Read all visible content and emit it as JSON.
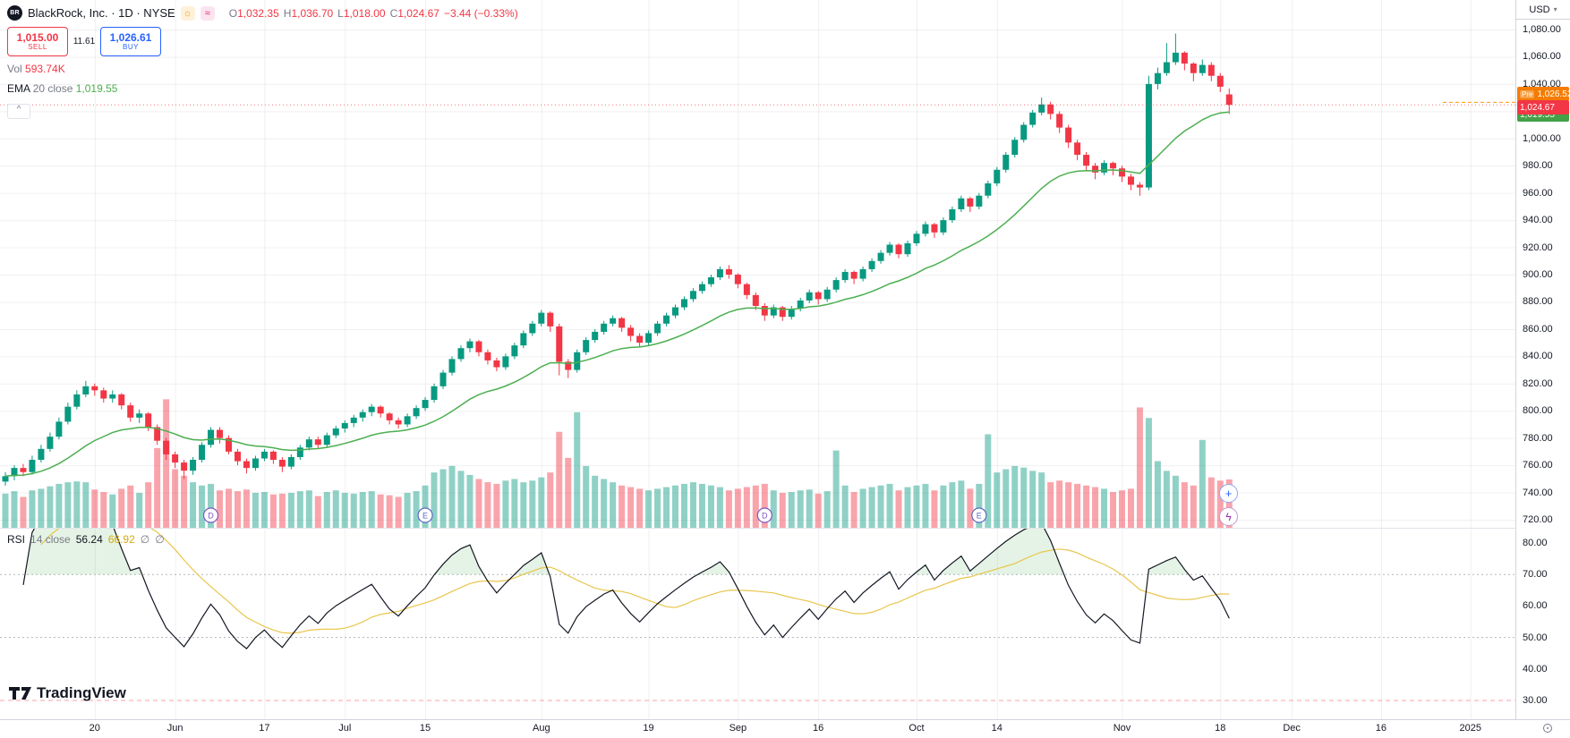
{
  "header": {
    "symbol_logo": "BR",
    "symbol_title": "BlackRock, Inc. · 1D · NYSE",
    "icons": [
      {
        "name": "sun-badge",
        "glyph": "☼"
      },
      {
        "name": "wave-badge",
        "glyph": "≈"
      }
    ],
    "ohlc": {
      "o_label": "O",
      "o": "1,032.35",
      "h_label": "H",
      "h": "1,036.70",
      "l_label": "L",
      "l": "1,018.00",
      "c_label": "C",
      "c": "1,024.67",
      "change": "−3.44 (−0.33%)"
    },
    "sell": {
      "price": "1,015.00",
      "label": "SELL"
    },
    "spread": "11.61",
    "buy": {
      "price": "1,026.61",
      "label": "BUY"
    },
    "vol_label": "Vol",
    "vol_value": "593.74K",
    "ema_label_main": "EMA",
    "ema_label_rest": "20 close",
    "ema_value": "1,019.55"
  },
  "price_scale": {
    "currency": "USD",
    "pre_label": "Pre",
    "pre_value": "1,026.52",
    "last_value": "1,024.67",
    "ema_value": "1,019.55"
  },
  "rsi": {
    "legend_title": "RSI",
    "legend_params": "14 close",
    "value": "56.24",
    "ma_value": "66.92",
    "hidden1": "∅",
    "hidden2": "∅"
  },
  "watermark": {
    "text": "TradingView"
  },
  "markers": [
    {
      "letter": "D",
      "i": 23,
      "color": "#7e57c2"
    },
    {
      "letter": "E",
      "i": 47,
      "color": "#5c6bc0"
    },
    {
      "letter": "D",
      "i": 85,
      "color": "#7e57c2"
    },
    {
      "letter": "E",
      "i": 109,
      "color": "#5c6bc0"
    }
  ],
  "time_axis": {
    "ticks": [
      {
        "l": "20",
        "i": 10
      },
      {
        "l": "Jun",
        "i": 19
      },
      {
        "l": "17",
        "i": 29
      },
      {
        "l": "Jul",
        "i": 38
      },
      {
        "l": "15",
        "i": 47
      },
      {
        "l": "Aug",
        "i": 60
      },
      {
        "l": "19",
        "i": 72
      },
      {
        "l": "Sep",
        "i": 82
      },
      {
        "l": "16",
        "i": 91
      },
      {
        "l": "Oct",
        "i": 102
      },
      {
        "l": "14",
        "i": 111
      },
      {
        "l": "Nov",
        "i": 125
      },
      {
        "l": "18",
        "i": 136
      },
      {
        "l": "Dec",
        "i": 144
      },
      {
        "l": "16",
        "i": 154
      },
      {
        "l": "2025",
        "i": 164
      }
    ]
  },
  "chart_data": {
    "type": "candlestick",
    "title": "BlackRock, Inc.",
    "exchange": "NYSE",
    "interval": "1D",
    "currency": "USD",
    "last_close": 1024.67,
    "premarket_price": 1026.52,
    "price_axis": {
      "ticks": [
        1080,
        1060,
        1040,
        1020,
        1000,
        980,
        960,
        940,
        920,
        900,
        880,
        860,
        840,
        820,
        800,
        780,
        760,
        740,
        720
      ]
    },
    "rsi_axis": {
      "ticks": [
        80,
        70,
        60,
        50,
        40,
        30
      ],
      "bands": [
        70,
        50,
        30
      ]
    },
    "volume_axis_max": 1650,
    "overlays": {
      "ema_period": 20,
      "rsi_period": 14,
      "rsi_ma_period": 14
    },
    "colors": {
      "up": "#089981",
      "down": "#f23645",
      "ema": "#4caf50",
      "rsi": "#131722",
      "rsi_ma": "#e9c54b",
      "pre": "#ff9800"
    },
    "candles": [
      [
        748,
        755,
        745,
        752,
        420
      ],
      [
        752,
        760,
        749,
        758,
        450
      ],
      [
        758,
        761,
        752,
        755,
        380
      ],
      [
        755,
        767,
        753,
        764,
        460
      ],
      [
        764,
        775,
        762,
        772,
        480
      ],
      [
        772,
        784,
        770,
        781,
        510
      ],
      [
        781,
        795,
        779,
        792,
        540
      ],
      [
        792,
        806,
        790,
        803,
        560
      ],
      [
        803,
        815,
        801,
        812,
        570
      ],
      [
        812,
        822,
        810,
        818,
        560
      ],
      [
        818,
        820,
        811,
        815,
        470
      ],
      [
        815,
        817,
        806,
        809,
        440
      ],
      [
        809,
        815,
        806,
        812,
        410
      ],
      [
        812,
        813,
        801,
        804,
        480
      ],
      [
        804,
        806,
        792,
        795,
        520
      ],
      [
        795,
        801,
        791,
        798,
        430
      ],
      [
        798,
        799,
        785,
        788,
        560
      ],
      [
        788,
        790,
        775,
        778,
        980
      ],
      [
        778,
        780,
        764,
        768,
        1580
      ],
      [
        768,
        770,
        758,
        762,
        720
      ],
      [
        762,
        764,
        750,
        756,
        640
      ],
      [
        756,
        766,
        753,
        764,
        560
      ],
      [
        764,
        777,
        762,
        775,
        520
      ],
      [
        775,
        788,
        773,
        786,
        540
      ],
      [
        786,
        788,
        776,
        780,
        460
      ],
      [
        780,
        782,
        768,
        770,
        480
      ],
      [
        770,
        772,
        760,
        763,
        450
      ],
      [
        763,
        765,
        754,
        758,
        470
      ],
      [
        758,
        767,
        756,
        765,
        430
      ],
      [
        765,
        772,
        763,
        770,
        440
      ],
      [
        770,
        771,
        761,
        764,
        410
      ],
      [
        764,
        766,
        755,
        759,
        420
      ],
      [
        759,
        768,
        757,
        766,
        430
      ],
      [
        766,
        775,
        764,
        773,
        450
      ],
      [
        773,
        781,
        771,
        779,
        460
      ],
      [
        779,
        781,
        772,
        775,
        390
      ],
      [
        775,
        784,
        773,
        782,
        440
      ],
      [
        782,
        789,
        780,
        787,
        460
      ],
      [
        787,
        793,
        784,
        791,
        430
      ],
      [
        791,
        797,
        788,
        795,
        420
      ],
      [
        795,
        801,
        792,
        799,
        440
      ],
      [
        799,
        805,
        796,
        803,
        450
      ],
      [
        803,
        804,
        795,
        798,
        410
      ],
      [
        798,
        799,
        790,
        793,
        400
      ],
      [
        793,
        795,
        787,
        790,
        380
      ],
      [
        790,
        798,
        788,
        796,
        430
      ],
      [
        796,
        804,
        794,
        802,
        450
      ],
      [
        802,
        810,
        800,
        808,
        520
      ],
      [
        808,
        820,
        806,
        818,
        680
      ],
      [
        818,
        830,
        816,
        828,
        720
      ],
      [
        828,
        840,
        826,
        838,
        760
      ],
      [
        838,
        848,
        836,
        846,
        700
      ],
      [
        846,
        853,
        843,
        851,
        650
      ],
      [
        851,
        852,
        840,
        843,
        600
      ],
      [
        843,
        845,
        834,
        837,
        560
      ],
      [
        837,
        839,
        829,
        832,
        540
      ],
      [
        832,
        842,
        830,
        840,
        580
      ],
      [
        840,
        850,
        838,
        848,
        600
      ],
      [
        848,
        859,
        846,
        857,
        560
      ],
      [
        857,
        866,
        855,
        864,
        580
      ],
      [
        864,
        874,
        862,
        872,
        620
      ],
      [
        872,
        873,
        858,
        862,
        680
      ],
      [
        862,
        864,
        826,
        836,
        1180
      ],
      [
        836,
        838,
        824,
        830,
        860
      ],
      [
        830,
        845,
        828,
        843,
        1420
      ],
      [
        843,
        854,
        841,
        852,
        760
      ],
      [
        852,
        860,
        850,
        858,
        640
      ],
      [
        858,
        866,
        856,
        864,
        600
      ],
      [
        864,
        870,
        862,
        868,
        560
      ],
      [
        868,
        869,
        858,
        861,
        520
      ],
      [
        861,
        863,
        851,
        855,
        500
      ],
      [
        855,
        857,
        847,
        850,
        480
      ],
      [
        850,
        859,
        848,
        857,
        460
      ],
      [
        857,
        866,
        855,
        864,
        480
      ],
      [
        864,
        872,
        862,
        870,
        500
      ],
      [
        870,
        878,
        868,
        876,
        520
      ],
      [
        876,
        884,
        874,
        882,
        540
      ],
      [
        882,
        890,
        880,
        888,
        560
      ],
      [
        888,
        895,
        886,
        893,
        540
      ],
      [
        893,
        900,
        891,
        898,
        520
      ],
      [
        898,
        906,
        896,
        904,
        500
      ],
      [
        904,
        907,
        897,
        900,
        460
      ],
      [
        900,
        901,
        890,
        893,
        480
      ],
      [
        893,
        894,
        882,
        885,
        500
      ],
      [
        885,
        887,
        874,
        877,
        520
      ],
      [
        877,
        879,
        866,
        870,
        540
      ],
      [
        870,
        878,
        868,
        876,
        460
      ],
      [
        876,
        877,
        866,
        869,
        430
      ],
      [
        869,
        877,
        867,
        875,
        440
      ],
      [
        875,
        883,
        873,
        881,
        460
      ],
      [
        881,
        889,
        879,
        887,
        470
      ],
      [
        887,
        888,
        878,
        882,
        420
      ],
      [
        882,
        891,
        880,
        889,
        450
      ],
      [
        889,
        898,
        887,
        896,
        950
      ],
      [
        896,
        904,
        894,
        902,
        520
      ],
      [
        902,
        903,
        893,
        897,
        440
      ],
      [
        897,
        906,
        895,
        904,
        480
      ],
      [
        904,
        912,
        902,
        910,
        500
      ],
      [
        910,
        918,
        908,
        916,
        520
      ],
      [
        916,
        924,
        914,
        922,
        540
      ],
      [
        922,
        923,
        912,
        915,
        460
      ],
      [
        915,
        925,
        913,
        923,
        500
      ],
      [
        923,
        932,
        921,
        930,
        520
      ],
      [
        930,
        939,
        928,
        937,
        540
      ],
      [
        937,
        938,
        927,
        931,
        460
      ],
      [
        931,
        942,
        929,
        940,
        520
      ],
      [
        940,
        950,
        938,
        948,
        560
      ],
      [
        948,
        958,
        946,
        956,
        580
      ],
      [
        956,
        957,
        946,
        950,
        480
      ],
      [
        950,
        960,
        948,
        958,
        540
      ],
      [
        958,
        969,
        956,
        967,
        1150
      ],
      [
        967,
        979,
        965,
        977,
        680
      ],
      [
        977,
        990,
        975,
        988,
        720
      ],
      [
        988,
        1001,
        986,
        999,
        760
      ],
      [
        999,
        1012,
        997,
        1010,
        740
      ],
      [
        1010,
        1021,
        1008,
        1019,
        700
      ],
      [
        1019,
        1030,
        1017,
        1025,
        680
      ],
      [
        1025,
        1027,
        1014,
        1018,
        560
      ],
      [
        1018,
        1020,
        1004,
        1008,
        580
      ],
      [
        1008,
        1010,
        993,
        997,
        560
      ],
      [
        997,
        999,
        984,
        988,
        540
      ],
      [
        988,
        990,
        976,
        980,
        520
      ],
      [
        980,
        982,
        970,
        975,
        500
      ],
      [
        975,
        984,
        973,
        982,
        480
      ],
      [
        982,
        983,
        973,
        978,
        440
      ],
      [
        978,
        980,
        968,
        972,
        460
      ],
      [
        972,
        974,
        962,
        966,
        480
      ],
      [
        966,
        968,
        958,
        964,
        1480
      ],
      [
        964,
        1046,
        962,
        1040,
        1350
      ],
      [
        1040,
        1052,
        1036,
        1048,
        820
      ],
      [
        1048,
        1070,
        1046,
        1056,
        700
      ],
      [
        1056,
        1077,
        1054,
        1063,
        640
      ],
      [
        1063,
        1064,
        1050,
        1055,
        560
      ],
      [
        1055,
        1056,
        1042,
        1048,
        520
      ],
      [
        1048,
        1058,
        1046,
        1054,
        1080
      ],
      [
        1054,
        1056,
        1042,
        1046,
        620
      ],
      [
        1046,
        1048,
        1034,
        1038,
        580
      ],
      [
        1032.35,
        1036.7,
        1018,
        1024.67,
        594
      ]
    ]
  }
}
